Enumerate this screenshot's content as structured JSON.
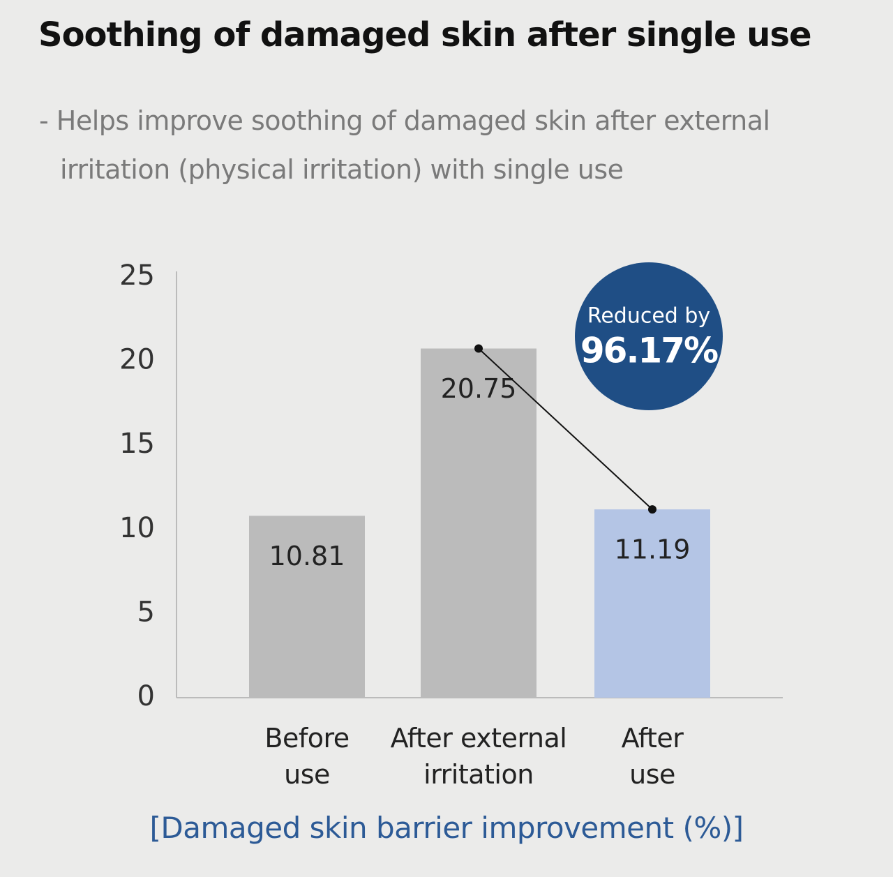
{
  "chart_data": {
    "type": "bar",
    "title": "Soothing of damaged skin after single use",
    "subtitle": "- Helps improve soothing of damaged skin after external irritation (physical irritation) with single use",
    "categories": [
      "Before use",
      "After external irritation",
      "After use"
    ],
    "values": [
      10.81,
      20.75,
      11.19
    ],
    "colors": [
      "#bbbbbb",
      "#bbbbbb",
      "#b4c5e5"
    ],
    "ylim": [
      0,
      25
    ],
    "yticks": [
      0,
      5,
      10,
      15,
      20,
      25
    ],
    "grid": false,
    "x_label": "[Damaged skin barrier improvement (%)]",
    "annotation": {
      "text": "Reduced by",
      "value": 96.17,
      "value_label": "96.17%"
    }
  }
}
